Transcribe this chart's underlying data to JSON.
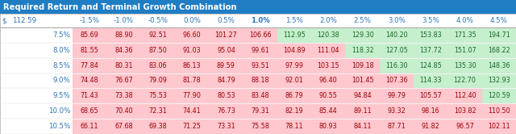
{
  "title": "Required Return and Terminal Growth Combination",
  "title_bg": "#1F7DC4",
  "title_color": "#FFFFFF",
  "corner_label": "$",
  "corner_value": "112.59",
  "col_headers": [
    "-1.5%",
    "-1.0%",
    "-0.5%",
    "0.0%",
    "0.5%",
    "1.0%",
    "1.5%",
    "2.0%",
    "2.5%",
    "3.0%",
    "3.5%",
    "4.0%",
    "4.5%"
  ],
  "row_headers": [
    "7.5%",
    "8.0%",
    "8.5%",
    "9.0%",
    "9.5%",
    "10.0%",
    "10.5%"
  ],
  "values": [
    [
      85.69,
      88.9,
      92.51,
      96.6,
      101.27,
      106.66,
      112.95,
      120.38,
      129.3,
      140.2,
      153.83,
      171.35,
      194.71
    ],
    [
      81.55,
      84.36,
      87.5,
      91.03,
      95.04,
      99.61,
      104.89,
      111.04,
      118.32,
      127.05,
      137.72,
      151.07,
      168.22
    ],
    [
      77.84,
      80.31,
      83.06,
      86.13,
      89.59,
      93.51,
      97.99,
      103.15,
      109.18,
      116.3,
      124.85,
      135.3,
      148.36
    ],
    [
      74.48,
      76.67,
      79.09,
      81.78,
      84.79,
      88.18,
      92.01,
      96.4,
      101.45,
      107.36,
      114.33,
      122.7,
      132.93
    ],
    [
      71.43,
      73.38,
      75.53,
      77.9,
      80.53,
      83.48,
      86.79,
      90.55,
      94.84,
      99.79,
      105.57,
      112.4,
      120.59
    ],
    [
      68.65,
      70.4,
      72.31,
      74.41,
      76.73,
      79.31,
      82.19,
      85.44,
      89.11,
      93.32,
      98.16,
      103.82,
      110.5
    ],
    [
      66.11,
      67.68,
      69.38,
      71.25,
      73.31,
      75.58,
      78.11,
      80.93,
      84.11,
      87.71,
      91.82,
      96.57,
      102.11
    ]
  ],
  "highlight_threshold": 112.59,
  "color_above": "#C6EFCE",
  "color_below": "#FFC7CE",
  "text_above": "#196B24",
  "text_below": "#9C0006",
  "header_color": "#2E75B6",
  "col_header_bold": "1.0%",
  "table_outline": "#AAAAAA",
  "row_line_color": "#DDDDDD",
  "title_fontsize": 7.2,
  "header_fontsize": 6.2,
  "cell_fontsize": 5.8
}
